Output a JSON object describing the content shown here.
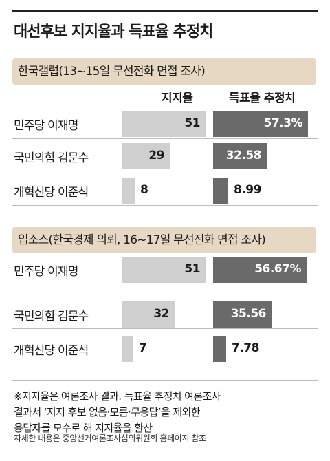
{
  "title": "대선후보 지지율과 득표율 추정치",
  "column_headers": {
    "support": "지지율",
    "vote_estimate": "득표율 추정치"
  },
  "note_lines": [
    "※지지율은 여론조사 결과. 득표율 추정치 여론조사",
    "결과서 ‘지지 후보 없음·모름·무응답’을 제외한",
    "응답자를 모수로 해 지지율을 환산"
  ],
  "source_credit": "자세한 내용은 중앙선거여론조사심의위원회 홈페이지 참조",
  "chart_data": [
    {
      "type": "bar",
      "title": "한국갤럽(13~15일 무선전화 면접 조사)",
      "categories": [
        "민주당 이재명",
        "국민의힘 김문수",
        "개혁신당 이준석"
      ],
      "series": [
        {
          "name": "지지율",
          "values": [
            51,
            29,
            8
          ],
          "labels": [
            "51",
            "29",
            "8"
          ]
        },
        {
          "name": "득표율 추정치",
          "values": [
            57.3,
            32.58,
            8.99
          ],
          "labels": [
            "57.3%",
            "32.58",
            "8.99"
          ]
        }
      ]
    },
    {
      "type": "bar",
      "title": "입소스(한국경제 의뢰, 16~17일 무선전화 면접 조사)",
      "categories": [
        "민주당 이재명",
        "국민의힘 김문수",
        "개혁신당 이준석"
      ],
      "series": [
        {
          "name": "지지율",
          "values": [
            51,
            32,
            7
          ],
          "labels": [
            "51",
            "32",
            "7"
          ]
        },
        {
          "name": "득표율 추정치",
          "values": [
            56.67,
            35.56,
            7.78
          ],
          "labels": [
            "56.67%",
            "35.56",
            "7.78"
          ]
        }
      ]
    }
  ],
  "colors": {
    "support_bar": "#cfcfcf",
    "estimate_bar": "#6a6a6a",
    "banner": "#e7d8c4"
  }
}
